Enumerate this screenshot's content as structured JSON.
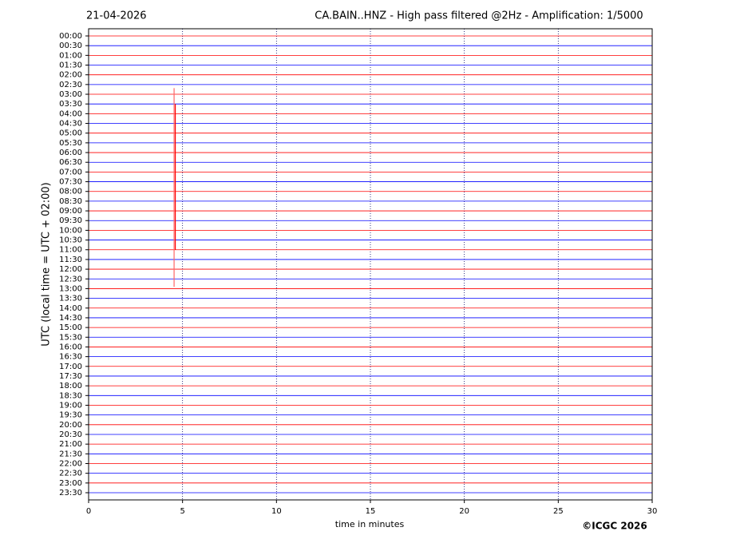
{
  "chart_data": {
    "type": "helicorder",
    "date": "21-04-2026",
    "title": "CA.BAIN..HNZ - High pass filtered @2Hz - Amplification: 1/5000",
    "y_label": "UTC (local time = UTC + 02:00)",
    "x_label": "time in minutes",
    "credit": "©ICGC 2026",
    "categories": [
      "00:00",
      "00:30",
      "01:00",
      "01:30",
      "02:00",
      "02:30",
      "03:00",
      "03:30",
      "04:00",
      "04:30",
      "05:00",
      "05:30",
      "06:00",
      "06:30",
      "07:00",
      "07:30",
      "08:00",
      "08:30",
      "09:00",
      "09:30",
      "10:00",
      "10:30",
      "11:00",
      "11:30",
      "12:00",
      "12:30",
      "13:00",
      "13:30",
      "14:00",
      "14:30",
      "15:00",
      "15:30",
      "16:00",
      "16:30",
      "17:00",
      "17:30",
      "18:00",
      "18:30",
      "19:00",
      "19:30",
      "20:00",
      "20:30",
      "21:00",
      "21:30",
      "22:00",
      "22:30",
      "23:00",
      "23:30"
    ],
    "colors": [
      "#ff0000",
      "#0000ff"
    ],
    "event_x": 4.55,
    "xlim": [
      0,
      30
    ],
    "xticks": [
      0,
      5,
      10,
      15,
      20,
      25,
      30
    ],
    "grid": true
  }
}
